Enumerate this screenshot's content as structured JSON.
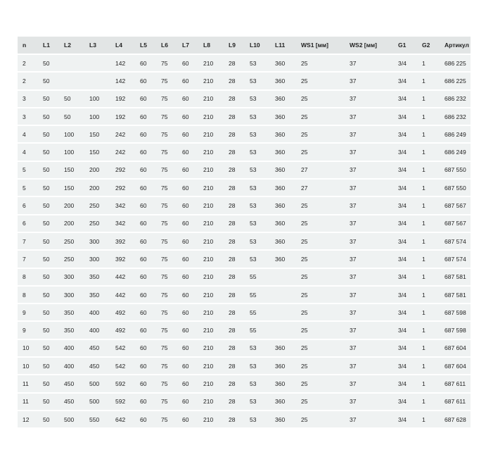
{
  "table": {
    "headers": [
      "n",
      "L1",
      "L2",
      "L3",
      "L4",
      "L5",
      "L6",
      "L7",
      "L8",
      "L9",
      "L10",
      "L11",
      "WS1 [мм]",
      "WS2 [мм]",
      "G1",
      "G2",
      "Артикул"
    ],
    "rows": [
      [
        "2",
        "50",
        "",
        "",
        "142",
        "60",
        "75",
        "60",
        "210",
        "28",
        "53",
        "360",
        "25",
        "37",
        "3/4",
        "1",
        "686 225"
      ],
      [
        "2",
        "50",
        "",
        "",
        "142",
        "60",
        "75",
        "60",
        "210",
        "28",
        "53",
        "360",
        "25",
        "37",
        "3/4",
        "1",
        "686 225"
      ],
      [
        "3",
        "50",
        "50",
        "100",
        "192",
        "60",
        "75",
        "60",
        "210",
        "28",
        "53",
        "360",
        "25",
        "37",
        "3/4",
        "1",
        "686 232"
      ],
      [
        "3",
        "50",
        "50",
        "100",
        "192",
        "60",
        "75",
        "60",
        "210",
        "28",
        "53",
        "360",
        "25",
        "37",
        "3/4",
        "1",
        "686 232"
      ],
      [
        "4",
        "50",
        "100",
        "150",
        "242",
        "60",
        "75",
        "60",
        "210",
        "28",
        "53",
        "360",
        "25",
        "37",
        "3/4",
        "1",
        "686 249"
      ],
      [
        "4",
        "50",
        "100",
        "150",
        "242",
        "60",
        "75",
        "60",
        "210",
        "28",
        "53",
        "360",
        "25",
        "37",
        "3/4",
        "1",
        "686 249"
      ],
      [
        "5",
        "50",
        "150",
        "200",
        "292",
        "60",
        "75",
        "60",
        "210",
        "28",
        "53",
        "360",
        "27",
        "37",
        "3/4",
        "1",
        "687 550"
      ],
      [
        "5",
        "50",
        "150",
        "200",
        "292",
        "60",
        "75",
        "60",
        "210",
        "28",
        "53",
        "360",
        "27",
        "37",
        "3/4",
        "1",
        "687 550"
      ],
      [
        "6",
        "50",
        "200",
        "250",
        "342",
        "60",
        "75",
        "60",
        "210",
        "28",
        "53",
        "360",
        "25",
        "37",
        "3/4",
        "1",
        "687 567"
      ],
      [
        "6",
        "50",
        "200",
        "250",
        "342",
        "60",
        "75",
        "60",
        "210",
        "28",
        "53",
        "360",
        "25",
        "37",
        "3/4",
        "1",
        "687 567"
      ],
      [
        "7",
        "50",
        "250",
        "300",
        "392",
        "60",
        "75",
        "60",
        "210",
        "28",
        "53",
        "360",
        "25",
        "37",
        "3/4",
        "1",
        "687 574"
      ],
      [
        "7",
        "50",
        "250",
        "300",
        "392",
        "60",
        "75",
        "60",
        "210",
        "28",
        "53",
        "360",
        "25",
        "37",
        "3/4",
        "1",
        "687 574"
      ],
      [
        "8",
        "50",
        "300",
        "350",
        "442",
        "60",
        "75",
        "60",
        "210",
        "28",
        "55",
        "",
        "25",
        "37",
        "3/4",
        "1",
        "687 581"
      ],
      [
        "8",
        "50",
        "300",
        "350",
        "442",
        "60",
        "75",
        "60",
        "210",
        "28",
        "55",
        "",
        "25",
        "37",
        "3/4",
        "1",
        "687 581"
      ],
      [
        "9",
        "50",
        "350",
        "400",
        "492",
        "60",
        "75",
        "60",
        "210",
        "28",
        "55",
        "",
        "25",
        "37",
        "3/4",
        "1",
        "687 598"
      ],
      [
        "9",
        "50",
        "350",
        "400",
        "492",
        "60",
        "75",
        "60",
        "210",
        "28",
        "55",
        "",
        "25",
        "37",
        "3/4",
        "1",
        "687 598"
      ],
      [
        "10",
        "50",
        "400",
        "450",
        "542",
        "60",
        "75",
        "60",
        "210",
        "28",
        "53",
        "360",
        "25",
        "37",
        "3/4",
        "1",
        "687 604"
      ],
      [
        "10",
        "50",
        "400",
        "450",
        "542",
        "60",
        "75",
        "60",
        "210",
        "28",
        "53",
        "360",
        "25",
        "37",
        "3/4",
        "1",
        "687 604"
      ],
      [
        "11",
        "50",
        "450",
        "500",
        "592",
        "60",
        "75",
        "60",
        "210",
        "28",
        "53",
        "360",
        "25",
        "37",
        "3/4",
        "1",
        "687 611"
      ],
      [
        "11",
        "50",
        "450",
        "500",
        "592",
        "60",
        "75",
        "60",
        "210",
        "28",
        "53",
        "360",
        "25",
        "37",
        "3/4",
        "1",
        "687 611"
      ],
      [
        "12",
        "50",
        "500",
        "550",
        "642",
        "60",
        "75",
        "60",
        "210",
        "28",
        "53",
        "360",
        "25",
        "37",
        "3/4",
        "1",
        "687 628"
      ]
    ]
  }
}
